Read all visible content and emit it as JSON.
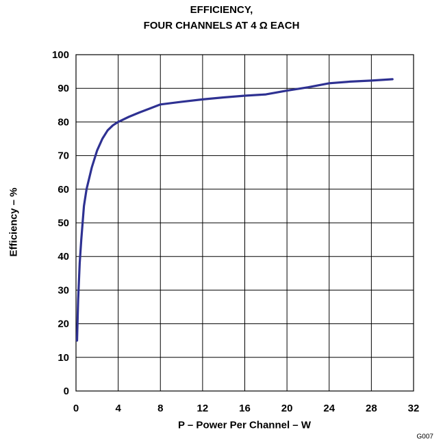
{
  "chart_data": {
    "type": "line",
    "title_line1": "EFFICIENCY,",
    "title_line2": "FOUR CHANNELS AT 4 Ω EACH",
    "xlabel": "P – Power Per Channel – W",
    "ylabel": "Efficiency – %",
    "xlim": [
      0,
      32
    ],
    "ylim": [
      0,
      100
    ],
    "xticks": [
      0,
      4,
      8,
      12,
      16,
      20,
      24,
      28,
      32
    ],
    "yticks": [
      0,
      10,
      20,
      30,
      40,
      50,
      60,
      70,
      80,
      90,
      100
    ],
    "grid": true,
    "figure_id": "G007",
    "line_color": "#2e3192",
    "series": [
      {
        "x": [
          0.1,
          0.2,
          0.35,
          0.5,
          0.75,
          1.0,
          1.5,
          2.0,
          2.5,
          3.0,
          3.5,
          4.0,
          5.0,
          6.0,
          7.0,
          8.0,
          10.0,
          12.0,
          14.0,
          16.0,
          18.0,
          20.0,
          22.0,
          24.0,
          26.0,
          28.0,
          30.0
        ],
        "y": [
          15,
          27,
          38,
          45,
          55,
          60,
          66.5,
          71.5,
          75,
          77.5,
          79,
          80,
          81.5,
          82.8,
          84,
          85.2,
          86,
          86.7,
          87.3,
          87.8,
          88.2,
          89.3,
          90.3,
          91.5,
          92,
          92.3,
          92.7
        ]
      }
    ]
  }
}
